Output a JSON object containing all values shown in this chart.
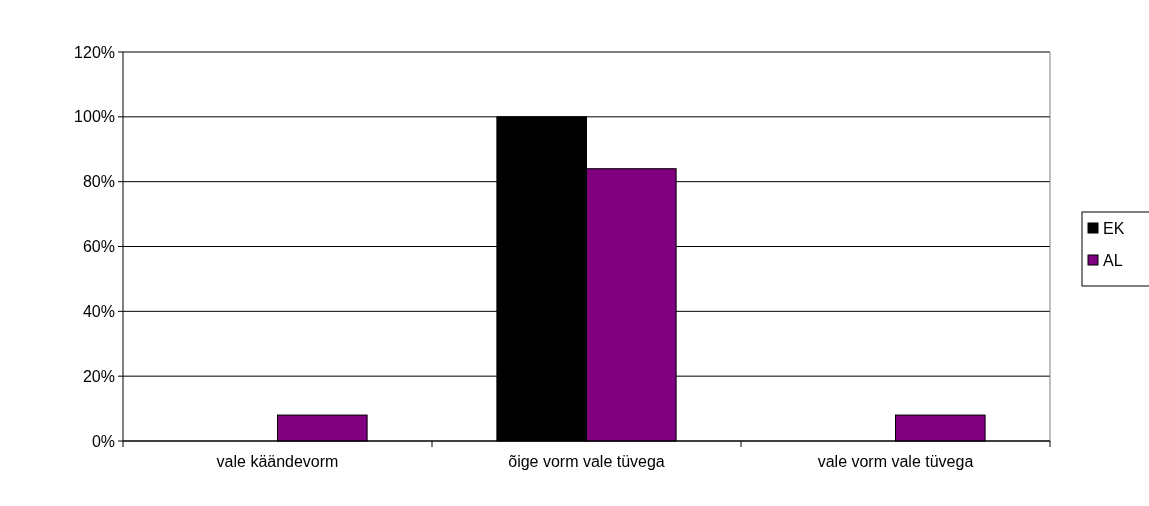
{
  "chart_data": {
    "type": "bar",
    "categories": [
      "vale käändevorm",
      "õige vorm vale tüvega",
      "vale vorm vale tüvega"
    ],
    "series": [
      {
        "name": "EK",
        "color": "#000000",
        "values": [
          0,
          100,
          0
        ]
      },
      {
        "name": "AL",
        "color": "#800080",
        "values": [
          8,
          84,
          8
        ]
      }
    ],
    "ylim": [
      0,
      120
    ],
    "yticks": [
      {
        "value": 0,
        "label": "0%"
      },
      {
        "value": 20,
        "label": "20%"
      },
      {
        "value": 40,
        "label": "40%"
      },
      {
        "value": 60,
        "label": "60%"
      },
      {
        "value": 80,
        "label": "80%"
      },
      {
        "value": 100,
        "label": "100%"
      },
      {
        "value": 120,
        "label": "120%"
      }
    ],
    "grid": "y",
    "legend": "right"
  }
}
